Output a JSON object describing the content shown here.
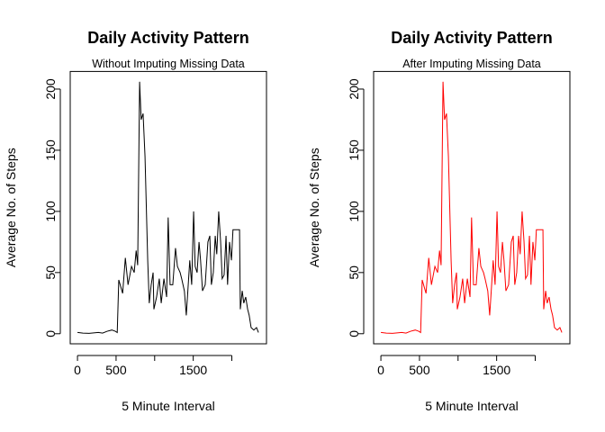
{
  "chart_data": [
    {
      "type": "line",
      "title": "Daily Activity Pattern",
      "subtitle": "Without Imputing Missing Data",
      "x_label": "5 Minute Interval",
      "y_label": "Average No. of Steps",
      "x": [
        0,
        70,
        150,
        270,
        325,
        385,
        445,
        490,
        515,
        535,
        585,
        620,
        655,
        700,
        735,
        760,
        780,
        805,
        825,
        850,
        875,
        910,
        930,
        955,
        980,
        990,
        1025,
        1060,
        1085,
        1120,
        1155,
        1175,
        1200,
        1235,
        1270,
        1295,
        1330,
        1350,
        1385,
        1410,
        1435,
        1455,
        1480,
        1505,
        1525,
        1550,
        1575,
        1595,
        1620,
        1655,
        1690,
        1715,
        1735,
        1760,
        1785,
        1805,
        1830,
        1855,
        1875,
        1900,
        1925,
        1945,
        1970,
        1995,
        2015,
        2100,
        2110,
        2135,
        2155,
        2180,
        2205,
        2225,
        2250,
        2285,
        2320,
        2345
      ],
      "series": [
        {
          "name": "Steps",
          "color": "#000000",
          "values": [
            1,
            0.5,
            0.3,
            1,
            0.5,
            2,
            3,
            2,
            1,
            44,
            33,
            62,
            40,
            55,
            50,
            68,
            56,
            206,
            175,
            180,
            145,
            60,
            25,
            40,
            50,
            20,
            30,
            45,
            25,
            45,
            30,
            95,
            40,
            40,
            70,
            55,
            50,
            45,
            35,
            15,
            40,
            60,
            40,
            100,
            55,
            50,
            75,
            60,
            35,
            40,
            75,
            80,
            40,
            50,
            80,
            65,
            100,
            75,
            45,
            48,
            80,
            40,
            75,
            60,
            85,
            85,
            20,
            35,
            25,
            30,
            20,
            15,
            5,
            3,
            5,
            1
          ]
        }
      ],
      "xlim": [
        -94.2,
        2449.2
      ],
      "ylim": [
        -8.25,
        214.4
      ],
      "xticks": [
        0,
        500,
        {
          "value": 1000,
          "label": null
        },
        1500,
        {
          "value": 2000,
          "label": null
        }
      ],
      "yticks": [
        0,
        50,
        100,
        150,
        200
      ]
    },
    {
      "type": "line",
      "title": "Daily Activity Pattern",
      "subtitle": "After Imputing Missing Data",
      "x_label": "5 Minute Interval",
      "y_label": "Average No. of Steps",
      "x": [
        0,
        70,
        150,
        270,
        325,
        385,
        445,
        490,
        515,
        535,
        585,
        620,
        655,
        700,
        735,
        760,
        780,
        805,
        825,
        850,
        875,
        910,
        930,
        955,
        980,
        990,
        1025,
        1060,
        1085,
        1120,
        1155,
        1175,
        1200,
        1235,
        1270,
        1295,
        1330,
        1350,
        1385,
        1410,
        1435,
        1455,
        1480,
        1505,
        1525,
        1550,
        1575,
        1595,
        1620,
        1655,
        1690,
        1715,
        1735,
        1760,
        1785,
        1805,
        1830,
        1855,
        1875,
        1900,
        1925,
        1945,
        1970,
        1995,
        2015,
        2100,
        2110,
        2135,
        2155,
        2180,
        2205,
        2225,
        2250,
        2285,
        2320,
        2345
      ],
      "series": [
        {
          "name": "Steps",
          "color": "#ff0000",
          "values": [
            1,
            0.5,
            0.3,
            1,
            0.5,
            2,
            3,
            2,
            1,
            44,
            33,
            62,
            40,
            55,
            50,
            68,
            56,
            206,
            175,
            180,
            145,
            60,
            25,
            40,
            50,
            20,
            30,
            45,
            25,
            45,
            30,
            95,
            40,
            40,
            70,
            55,
            50,
            45,
            35,
            15,
            40,
            60,
            40,
            100,
            55,
            50,
            75,
            60,
            35,
            40,
            75,
            80,
            40,
            50,
            80,
            65,
            100,
            75,
            45,
            48,
            80,
            40,
            75,
            60,
            85,
            85,
            20,
            35,
            25,
            30,
            20,
            15,
            5,
            3,
            5,
            1
          ]
        }
      ],
      "xlim": [
        -94.2,
        2449.2
      ],
      "ylim": [
        -8.25,
        214.4
      ],
      "xticks": [
        0,
        500,
        {
          "value": 1000,
          "label": null
        },
        1500,
        {
          "value": 2000,
          "label": null
        }
      ],
      "yticks": [
        0,
        50,
        100,
        150,
        200
      ]
    }
  ]
}
